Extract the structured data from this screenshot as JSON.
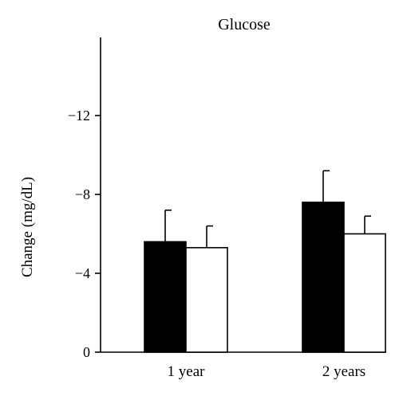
{
  "chart_data": {
    "type": "bar",
    "title": "Glucose",
    "xlabel": "",
    "ylabel": "Change (mg/dL)",
    "categories": [
      "1 year",
      "2 years"
    ],
    "y_tick_values": [
      0,
      -4,
      -8,
      -12
    ],
    "y_tick_labels": [
      "0",
      "−4",
      "−8",
      "−12"
    ],
    "ylim": [
      0,
      -16
    ],
    "axis_direction": "inverted (more negative values upward)",
    "grid": false,
    "legend": "none",
    "series": [
      {
        "color": "#000000",
        "values": [
          -5.6,
          -7.6
        ],
        "error_upper": [
          -7.2,
          -9.2
        ]
      },
      {
        "color": "#ffffff",
        "values": [
          -5.3,
          -6.0
        ],
        "error_upper": [
          -6.4,
          -6.9
        ]
      }
    ]
  }
}
